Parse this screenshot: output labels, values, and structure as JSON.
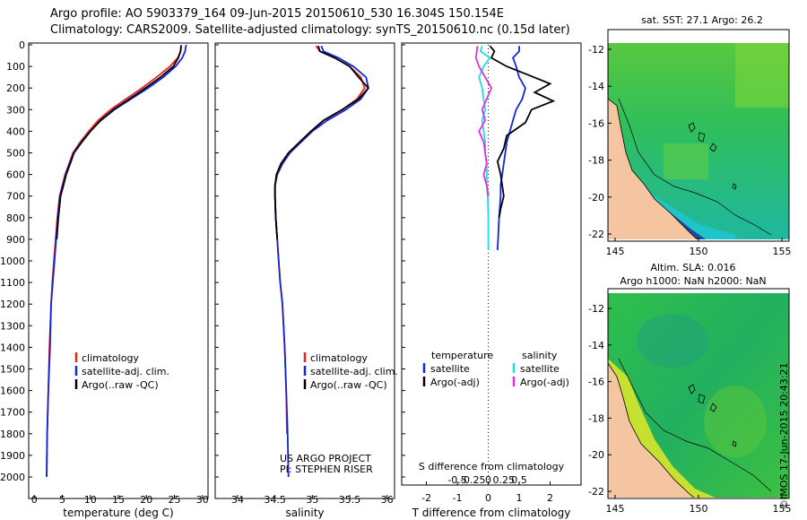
{
  "header": {
    "line1": "Argo profile: AO 5903379_164 09-Jun-2015 20150610_530 16.304S 150.154E",
    "line2": "Climatology: CARS2009. Satellite-adjusted climatology: synTS_20150610.nc (0.15d later)"
  },
  "colors": {
    "clim": "#e8221c",
    "sat": "#1424dc",
    "argo": "#000000",
    "sal_sat": "#22dddd",
    "sal_argo": "#e22ee0"
  },
  "depth_axis": {
    "ticks": [
      0,
      100,
      200,
      300,
      400,
      500,
      600,
      700,
      800,
      900,
      1000,
      1100,
      1200,
      1300,
      1400,
      1500,
      1600,
      1700,
      1800,
      1900,
      2000
    ],
    "lim": [
      0,
      2080
    ]
  },
  "legend": {
    "clim": "climatology",
    "sat": "satellite-adj. clim.",
    "argo": "Argo(..raw -QC)"
  },
  "credit": {
    "line1": "US ARGO PROJECT",
    "line2": "PI: STEPHEN RISER"
  },
  "diff_legend": {
    "temp_title": "temperature",
    "sal_title": "salinity",
    "t_sat": "satellite",
    "t_argo": "Argo(-adj)",
    "s_sat": "satellite",
    "s_argo": "Argo(-adj)"
  },
  "diff_axes": {
    "s_label": "S difference from climatology",
    "s_ticks": [
      "-0.5",
      "-0.25",
      "0",
      "0.25",
      "0.5"
    ],
    "t_label": "T difference from climatology",
    "t_ticks": [
      "-2",
      "-1",
      "0",
      "1",
      "2"
    ]
  },
  "maps": {
    "top": {
      "title": "sat. SST: 27.1  Argo: 26.2",
      "lat_ticks": [
        "-12",
        "-14",
        "-16",
        "-18",
        "-20",
        "-22"
      ],
      "lon_ticks": [
        "145",
        "150",
        "155"
      ]
    },
    "bottom": {
      "title1": "Altim. SLA: 0.016",
      "title2": "Argo h1000: NaN h2000: NaN",
      "lat_ticks": [
        "-12",
        "-14",
        "-16",
        "-18",
        "-20",
        "-22"
      ],
      "lon_ticks": [
        "145",
        "150",
        "155"
      ]
    }
  },
  "stamp": "©IMOS 17-Jun-2015 20:43:21",
  "chart_data": [
    {
      "type": "line",
      "xlabel": "temperature (deg C)",
      "ylabel": "",
      "xlim": [
        -1,
        31
      ],
      "ylim": [
        2080,
        0
      ],
      "xticks": [
        0,
        5,
        10,
        15,
        20,
        25,
        30
      ],
      "series": [
        {
          "name": "climatology",
          "color": "#e8221c",
          "x": [
            26.2,
            26.1,
            25.6,
            24.2,
            21.8,
            19.2,
            16.4,
            13.6,
            11.4,
            9.7,
            8.2,
            6.9,
            6.2,
            5.5,
            5.0,
            4.5,
            4.1,
            3.8,
            3.5,
            3.2,
            3.0,
            2.7,
            2.5,
            2.3,
            2.2
          ],
          "y": [
            0,
            30,
            60,
            100,
            150,
            200,
            250,
            300,
            350,
            400,
            450,
            500,
            550,
            600,
            650,
            700,
            800,
            900,
            1000,
            1100,
            1200,
            1400,
            1600,
            1800,
            2000
          ]
        },
        {
          "name": "satellite-adj. clim.",
          "color": "#1424dc",
          "x": [
            27.1,
            26.9,
            26.4,
            25.2,
            23.0,
            20.3,
            17.3,
            14.3,
            11.9,
            10.0,
            8.4,
            7.0,
            6.3,
            5.6,
            5.1,
            4.6,
            4.2,
            3.9,
            3.6,
            3.3,
            3.0,
            2.8,
            2.5,
            2.3,
            2.2
          ],
          "y": [
            0,
            30,
            60,
            100,
            150,
            200,
            250,
            300,
            350,
            400,
            450,
            500,
            550,
            600,
            650,
            700,
            800,
            900,
            1000,
            1100,
            1200,
            1400,
            1600,
            1800,
            2000
          ]
        },
        {
          "name": "Argo(..raw -QC)",
          "color": "#000000",
          "x": [
            26.2,
            26.1,
            25.7,
            24.8,
            22.5,
            19.8,
            17.0,
            14.1,
            11.8,
            10.0,
            8.5,
            7.1,
            6.4,
            5.7,
            5.2,
            4.7,
            4.3,
            4.0
          ],
          "y": [
            5,
            30,
            60,
            100,
            150,
            200,
            250,
            300,
            350,
            400,
            450,
            500,
            550,
            600,
            650,
            700,
            800,
            900
          ]
        }
      ]
    },
    {
      "type": "line",
      "xlabel": "salinity",
      "ylabel": "",
      "xlim": [
        33.7,
        36.1
      ],
      "ylim": [
        2080,
        0
      ],
      "xticks": [
        34,
        34.5,
        35,
        35.5,
        36
      ],
      "series": [
        {
          "name": "climatology",
          "color": "#e8221c",
          "x": [
            35.05,
            35.1,
            35.3,
            35.5,
            35.65,
            35.7,
            35.6,
            35.4,
            35.15,
            35.0,
            34.85,
            34.7,
            34.6,
            34.53,
            34.5,
            34.5,
            34.51,
            34.53,
            34.55,
            34.57,
            34.6,
            34.63,
            34.65,
            34.66
          ],
          "y": [
            5,
            30,
            60,
            100,
            150,
            200,
            250,
            300,
            350,
            400,
            450,
            500,
            550,
            600,
            650,
            700,
            800,
            900,
            1000,
            1100,
            1200,
            1400,
            1600,
            1800
          ]
        },
        {
          "name": "satellite-adj. clim.",
          "color": "#1424dc",
          "x": [
            35.12,
            35.15,
            35.35,
            35.55,
            35.72,
            35.75,
            35.65,
            35.45,
            35.2,
            35.0,
            34.85,
            34.7,
            34.6,
            34.53,
            34.5,
            34.5,
            34.51,
            34.53,
            34.55,
            34.57,
            34.6,
            34.63,
            34.65,
            34.67,
            34.68
          ],
          "y": [
            5,
            30,
            60,
            100,
            150,
            200,
            250,
            300,
            350,
            400,
            450,
            500,
            550,
            600,
            650,
            700,
            800,
            900,
            1000,
            1100,
            1200,
            1400,
            1600,
            1800,
            2000
          ]
        },
        {
          "name": "Argo(..raw -QC)",
          "color": "#000000",
          "x": [
            35.08,
            35.1,
            35.3,
            35.5,
            35.62,
            35.75,
            35.62,
            35.4,
            35.15,
            34.98,
            34.83,
            34.68,
            34.58,
            34.52,
            34.5,
            34.5,
            34.51,
            34.53
          ],
          "y": [
            5,
            30,
            60,
            100,
            150,
            200,
            250,
            300,
            350,
            400,
            450,
            500,
            550,
            600,
            650,
            700,
            800,
            900
          ]
        }
      ]
    },
    {
      "type": "line",
      "xlabel": "T difference from climatology",
      "ylabel": "",
      "xlim": [
        -2.8,
        3.0
      ],
      "ylim": [
        2080,
        0
      ],
      "xticks": [
        -2,
        -1,
        0,
        1,
        2
      ],
      "series": [
        {
          "name": "temperature satellite",
          "color": "#1424dc",
          "x": [
            1.0,
            1.0,
            0.8,
            0.9,
            1.0,
            1.2,
            1.1,
            0.9,
            0.8,
            0.7,
            0.6,
            0.55,
            0.5,
            0.45,
            0.4,
            0.4,
            0.35,
            0.3
          ],
          "y": [
            5,
            30,
            60,
            100,
            150,
            200,
            250,
            300,
            350,
            400,
            450,
            500,
            550,
            600,
            650,
            700,
            800,
            950
          ]
        },
        {
          "name": "temperature Argo(-adj)",
          "color": "#000000",
          "x": [
            0.05,
            0.2,
            0.1,
            0.6,
            1.3,
            2.0,
            1.5,
            2.1,
            1.4,
            1.2,
            0.6,
            0.5,
            0.3,
            0.4,
            0.45,
            0.5,
            0.4,
            0.35
          ],
          "y": [
            5,
            30,
            60,
            100,
            140,
            180,
            220,
            260,
            300,
            360,
            420,
            480,
            540,
            600,
            650,
            700,
            760,
            800
          ]
        },
        {
          "name": "salinity satellite",
          "color": "#22dddd",
          "x": [
            -0.2,
            -0.25,
            0.05,
            -0.15,
            -0.3,
            -0.2,
            -0.15,
            -0.1,
            -0.2,
            -0.15,
            -0.1,
            -0.1,
            -0.05,
            -0.05,
            -0.05,
            -0.02,
            0.0,
            0.0
          ],
          "y": [
            5,
            30,
            60,
            100,
            150,
            200,
            250,
            300,
            350,
            400,
            450,
            500,
            550,
            600,
            650,
            700,
            800,
            950
          ]
        },
        {
          "name": "salinity Argo(-adj)",
          "color": "#e22ee0",
          "x": [
            -0.35,
            -0.4,
            -0.3,
            -0.1,
            0.1,
            -0.05,
            -0.2,
            -0.1,
            -0.3,
            -0.15,
            -0.1,
            -0.05,
            -0.15,
            -0.05,
            0.0
          ],
          "y": [
            5,
            60,
            100,
            150,
            200,
            250,
            300,
            350,
            400,
            450,
            500,
            550,
            600,
            650,
            700
          ]
        }
      ]
    }
  ]
}
